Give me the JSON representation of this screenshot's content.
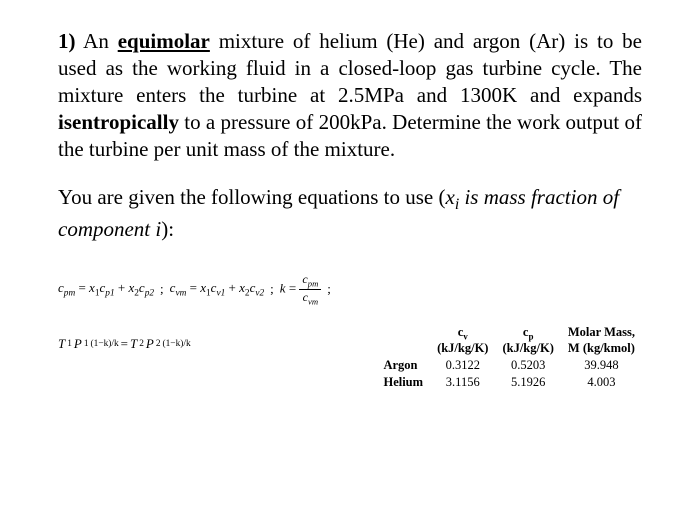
{
  "problem": {
    "number": "1)",
    "lead": " An ",
    "keyword": "equimolar",
    "text_a": " mixture of helium (He) and argon (Ar) is to be used as the working fluid in a closed-loop gas turbine cycle. The mixture enters the turbine at 2.5MPa and 1300K and expands ",
    "bold_word": "isentropically",
    "text_b": " to a pressure of 200kPa. Determine the work output of the turbine per unit mass of the mixture."
  },
  "given": {
    "lead": "You are given the following equations to use (",
    "xi": "x",
    "i_sub": "i",
    "tail_italic": " is mass fraction of component i",
    "close": "):"
  },
  "eq1": {
    "cpm": "c",
    "cpm_sub": "pm",
    "eq": " = ",
    "x1": "x",
    "x1_sub": "1",
    "cp1": "c",
    "cp1_sub": "p1",
    "plus": " + ",
    "x2": "x",
    "x2_sub": "2",
    "cp2": "c",
    "cp2_sub": "p2",
    "sep": " ;  ",
    "cvm": "c",
    "cvm_sub": "vm",
    "x1b": "x",
    "x1b_sub": "1",
    "cv1": "c",
    "cv1_sub": "v1",
    "x2b": "x",
    "x2b_sub": "2",
    "cv2": "c",
    "cv2_sub": "v2",
    "k": "k",
    "frac_top_c": "c",
    "frac_top_sub": "pm",
    "frac_bot_c": "c",
    "frac_bot_sub": "vm",
    "semi": " ;"
  },
  "eq2": {
    "T1": "T",
    "T1_sub": "1",
    "P1": "P",
    "P1_sub": "1",
    "exp": "(1−k)/k",
    "eq": " = ",
    "T2": "T",
    "T2_sub": "2",
    "P2": "P",
    "P2_sub": "2"
  },
  "table": {
    "h_cv": "c",
    "h_cv_sub": "v",
    "h_cp": "c",
    "h_cp_sub": "p",
    "h_mm1": "Molar Mass,",
    "unit_cv": "(kJ/kg/K)",
    "unit_cp": "(kJ/kg/K)",
    "unit_mm": "M (kg/kmol)",
    "rows": [
      {
        "label": "Argon",
        "cv": "0.3122",
        "cp": "0.5203",
        "mm": "39.948"
      },
      {
        "label": "Helium",
        "cv": "3.1156",
        "cp": "5.1926",
        "mm": "4.003"
      }
    ]
  }
}
